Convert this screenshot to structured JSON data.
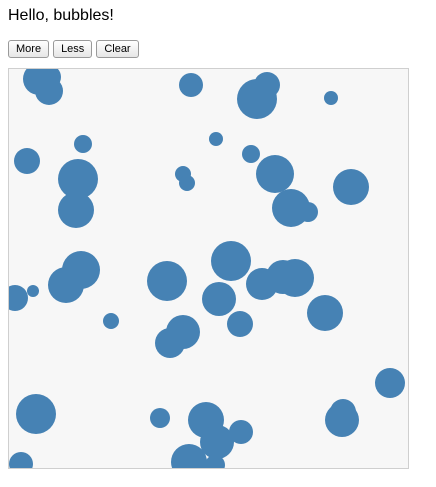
{
  "page": {
    "heading": "Hello, bubbles!"
  },
  "toolbar": {
    "more_label": "More",
    "less_label": "Less",
    "clear_label": "Clear"
  },
  "bubbles": {
    "color": "#4682b4",
    "background": "#f7f7f7",
    "border_color": "#cfcfcf",
    "count": 49
  }
}
